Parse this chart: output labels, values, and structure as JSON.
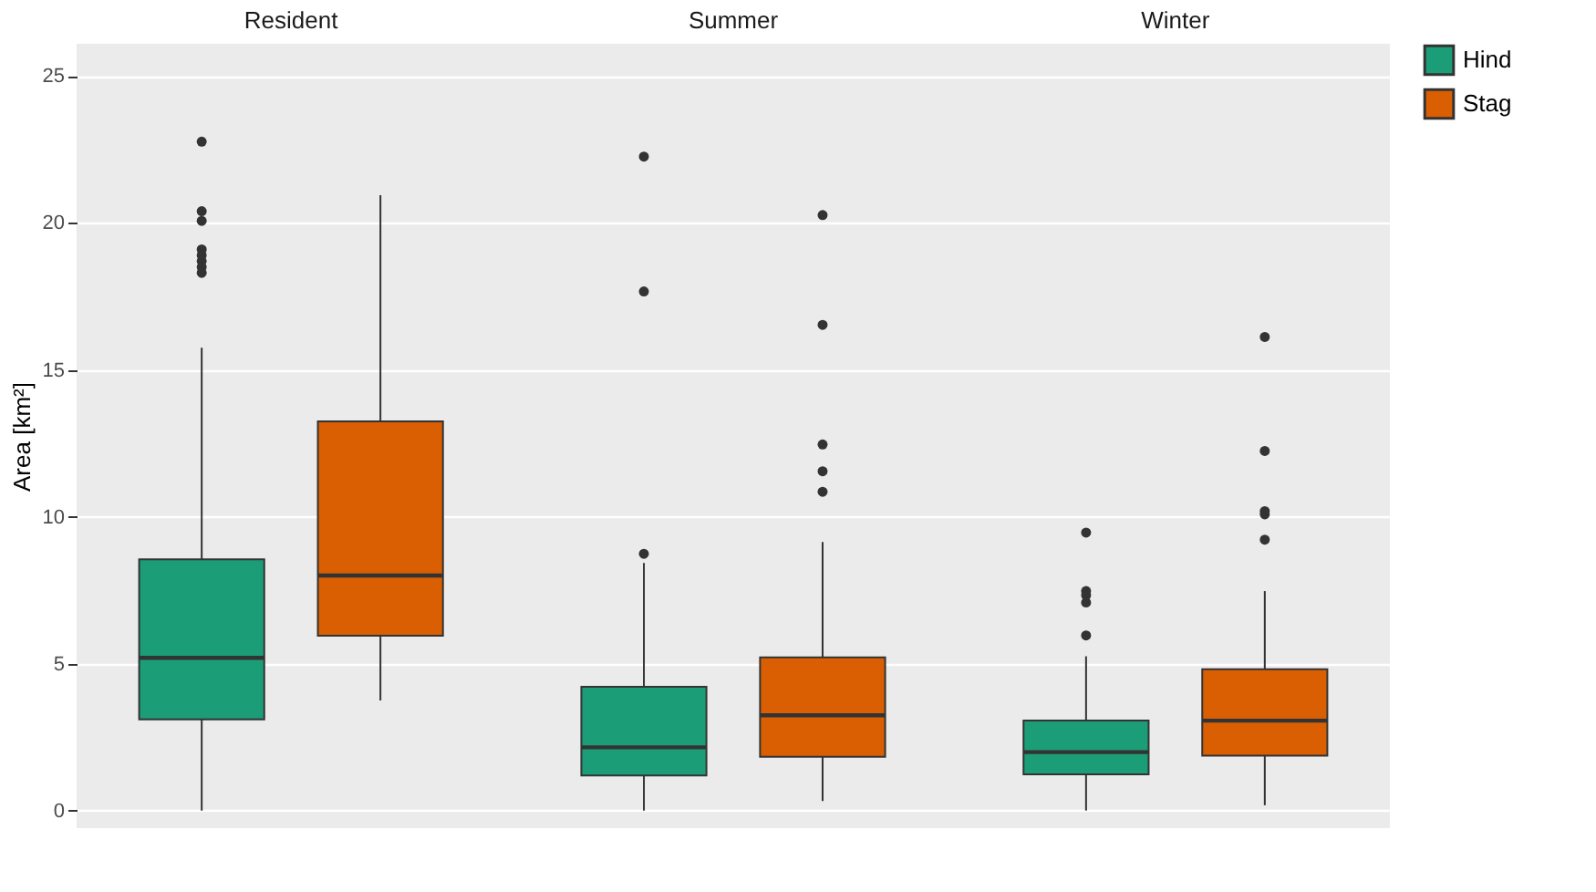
{
  "chart_data": {
    "type": "box",
    "ylabel": "Area [km²]",
    "categories": [
      "Resident",
      "Summer",
      "Winter"
    ],
    "ylim": [
      -0.6,
      26.1
    ],
    "yticks": [
      0,
      5,
      10,
      15,
      20,
      25
    ],
    "grid": "y",
    "legend": "right",
    "series": [
      {
        "name": "Hind",
        "color": "#1b9e77",
        "boxes": [
          {
            "low": 0,
            "q1": 3.1,
            "median": 5.2,
            "q3": 8.55,
            "high": 15.75,
            "outliers": [
              22.77,
              20.4,
              20.07,
              19.1,
              18.9,
              18.7,
              18.5,
              18.3
            ]
          },
          {
            "low": 0,
            "q1": 1.19,
            "median": 2.15,
            "q3": 4.21,
            "high": 8.43,
            "outliers": [
              8.74,
              17.67,
              22.26
            ]
          },
          {
            "low": 0,
            "q1": 1.23,
            "median": 1.99,
            "q3": 3.06,
            "high": 5.25,
            "outliers": [
              9.46,
              7.47,
              7.33,
              7.08,
              5.96
            ]
          }
        ]
      },
      {
        "name": "Stag",
        "color": "#d95f02",
        "boxes": [
          {
            "low": 3.75,
            "q1": 5.95,
            "median": 8.0,
            "q3": 13.25,
            "high": 20.95
          },
          {
            "low": 0.32,
            "q1": 1.83,
            "median": 3.24,
            "q3": 5.21,
            "high": 9.14,
            "outliers": [
              20.27,
              16.53,
              12.46,
              11.55,
              10.85
            ]
          },
          {
            "low": 0.18,
            "q1": 1.87,
            "median": 3.06,
            "q3": 4.81,
            "high": 7.47,
            "outliers": [
              16.12,
              12.24,
              10.19,
              10.08,
              9.22
            ]
          }
        ]
      }
    ]
  }
}
